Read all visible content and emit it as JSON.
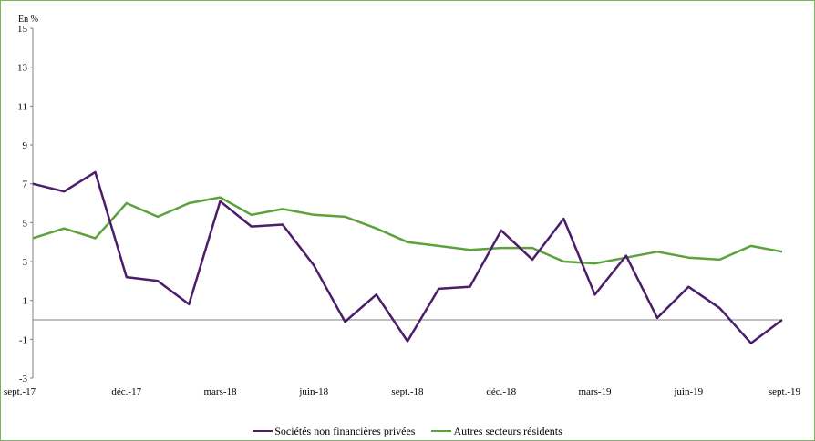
{
  "chart_data": {
    "type": "line",
    "title": "",
    "unit_label": "En %",
    "xlabel": "",
    "ylabel": "",
    "ylim": [
      -3,
      15
    ],
    "yticks": [
      -3,
      -1,
      1,
      3,
      5,
      7,
      9,
      11,
      13,
      15
    ],
    "x": [
      "sept.-17",
      "oct.-17",
      "nov.-17",
      "déc.-17",
      "janv.-18",
      "févr.-18",
      "mars-18",
      "avr.-18",
      "mai-18",
      "juin-18",
      "juil.-18",
      "août-18",
      "sept.-18",
      "oct.-18",
      "nov.-18",
      "déc.-18",
      "janv.-19",
      "févr.-19",
      "mars-19",
      "avr.-19",
      "mai-19",
      "juin-19",
      "juil.-19",
      "août-19",
      "sept.-19"
    ],
    "x_tick_labels": [
      "sept.-17",
      "déc.-17",
      "mars-18",
      "juin-18",
      "sept.-18",
      "déc.-18",
      "mars-19",
      "juin-19",
      "sept.-19"
    ],
    "x_tick_indices": [
      0,
      3,
      6,
      9,
      12,
      15,
      18,
      21,
      24
    ],
    "grid": false,
    "legend_position": "bottom",
    "series": [
      {
        "name": "Sociétés non financières privées",
        "color": "#4b1d6b",
        "values": [
          7.0,
          6.6,
          7.6,
          2.2,
          2.0,
          0.8,
          6.1,
          4.8,
          4.9,
          2.8,
          -0.1,
          1.3,
          -1.1,
          1.6,
          1.7,
          4.6,
          3.1,
          5.2,
          1.3,
          3.3,
          0.1,
          1.7,
          0.6,
          -1.2,
          0.0
        ]
      },
      {
        "name": "Autres secteurs résidents",
        "color": "#5da13b",
        "values": [
          4.2,
          4.7,
          4.2,
          6.0,
          5.3,
          6.0,
          6.3,
          5.4,
          5.7,
          5.4,
          5.3,
          4.7,
          4.0,
          3.8,
          3.6,
          3.7,
          3.7,
          3.0,
          2.9,
          3.2,
          3.5,
          3.2,
          3.1,
          3.8,
          3.5
        ]
      }
    ]
  }
}
